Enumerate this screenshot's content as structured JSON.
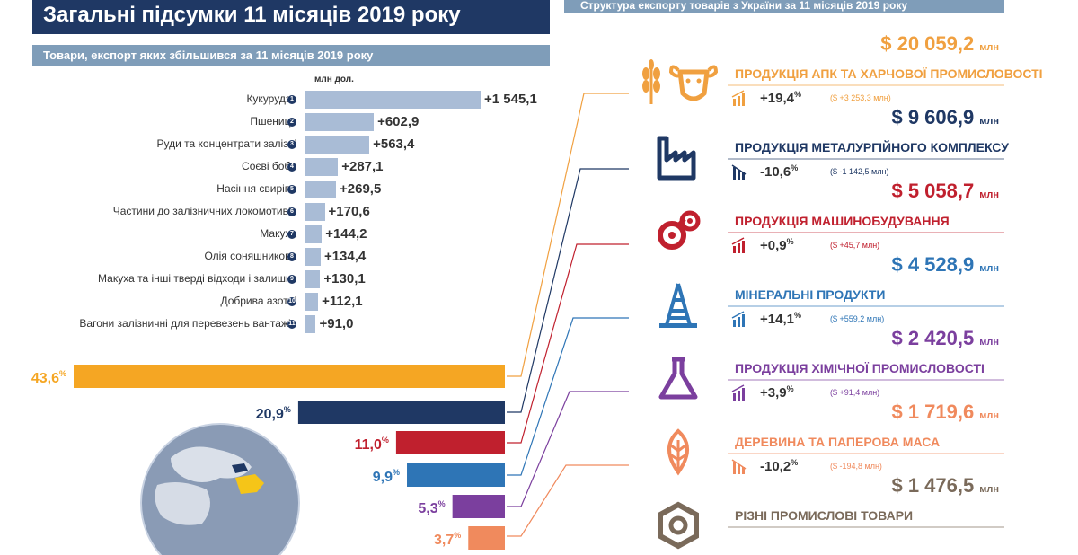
{
  "header": {
    "title": "Загальні підсумки 11 місяців 2019 року",
    "right_title": "Структура експорту товарів з України за 11 місяців 2019 року"
  },
  "products_chart": {
    "subtitle": "Товари, експорт яких збільшився за 11 місяців 2019 року",
    "unit": "млн дол."
  },
  "chart_data": [
    {
      "type": "bar",
      "orientation": "horizontal",
      "title": "Товари, експорт яких збільшився за 11 місяців 2019 року",
      "unit": "млн дол.",
      "categories": [
        "Кукурудза",
        "Пшениця",
        "Руди та концентрати залізні",
        "Соєві боби",
        "Насіння свиріпи",
        "Частини до залізничних локомотивів",
        "Макуха",
        "Олія соняшникова",
        "Макуха та інші тверді відходи і залишки",
        "Добрива азотні",
        "Вагони залізничні для перевезень вантажів"
      ],
      "markers": [
        "1",
        "2",
        "3",
        "4",
        "5",
        "6",
        "7",
        "8",
        "9",
        "10",
        "11"
      ],
      "values": [
        1545.1,
        602.9,
        563.4,
        287.1,
        269.5,
        170.6,
        144.2,
        134.4,
        130.1,
        112.1,
        91.0
      ],
      "labels": [
        "+1 545,1",
        "+602,9",
        "+563,4",
        "+287,1",
        "+269,5",
        "+170,6",
        "+144,2",
        "+134,4",
        "+130,1",
        "+112,1",
        "+91,0"
      ],
      "bar_color": "#a9bcd6"
    },
    {
      "type": "bar",
      "orientation": "horizontal",
      "title": "Структура експорту товарів з України за 11 місяців 2019 року",
      "unit": "%",
      "values": [
        43.6,
        20.9,
        11.0,
        9.9,
        5.3,
        3.7
      ],
      "labels": [
        "43,6",
        "20,9",
        "11,0",
        "9,9",
        "5,3",
        "3,7"
      ],
      "colors": [
        "#f5a623",
        "#1f3864",
        "#c0202e",
        "#2e75b6",
        "#7b3f9e",
        "#f08a5d"
      ]
    }
  ],
  "sectors": [
    {
      "total": "$ 20 059,2",
      "unit": "млн",
      "name": "ПРОДУКЦІЯ АПК ТА ХАРЧОВОЇ ПРОМИСЛОВОСТІ",
      "change": "+19,4",
      "pct": "%",
      "abs": "($ +3 253,3 млн)",
      "color": "#f0a040",
      "icon": "wheat-cow-icon",
      "trend": "up"
    },
    {
      "total": "$ 9 606,9",
      "unit": "млн",
      "name": "ПРОДУКЦІЯ МЕТАЛУРГІЙНОГО КОМПЛЕКСУ",
      "change": "-10,6",
      "pct": "%",
      "abs": "($ -1 142,5 млн)",
      "color": "#1f3864",
      "icon": "factory-icon",
      "trend": "down"
    },
    {
      "total": "$ 5 058,7",
      "unit": "млн",
      "name": "ПРОДУКЦІЯ МАШИНОБУДУВАННЯ",
      "change": "+0,9",
      "pct": "%",
      "abs": "($ +45,7 млн)",
      "color": "#c0202e",
      "icon": "gears-icon",
      "trend": "up"
    },
    {
      "total": "$ 4 528,9",
      "unit": "млн",
      "name": "МІНЕРАЛЬНІ ПРОДУКТИ",
      "change": "+14,1",
      "pct": "%",
      "abs": "($ +559,2 млн)",
      "color": "#2e75b6",
      "icon": "oil-rig-icon",
      "trend": "up"
    },
    {
      "total": "$ 2 420,5",
      "unit": "млн",
      "name": "ПРОДУКЦІЯ ХІМІЧНОЇ ПРОМИСЛОВОСТІ",
      "change": "+3,9",
      "pct": "%",
      "abs": "($ +91,4 млн)",
      "color": "#7b3f9e",
      "icon": "flask-icon",
      "trend": "up"
    },
    {
      "total": "$ 1 719,6",
      "unit": "млн",
      "name": "ДЕРЕВИНА ТА ПАПЕРОВА МАСА",
      "change": "-10,2",
      "pct": "%",
      "abs": "($ -194,8 млн)",
      "color": "#f08a5d",
      "icon": "leaf-icon",
      "trend": "down"
    },
    {
      "total": "$ 1 476,5",
      "unit": "млн",
      "name": "РІЗНІ ПРОМИСЛОВІ ТОВАРИ",
      "change": "",
      "pct": "",
      "abs": "",
      "color": "#7a6a5a",
      "icon": "nut-icon",
      "trend": "none"
    }
  ]
}
